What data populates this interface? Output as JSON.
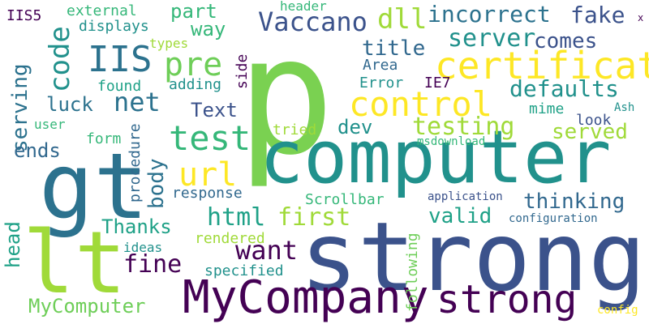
{
  "palette": {
    "dark_purple": "#440154",
    "indigo": "#3b528b",
    "blue": "#31688e",
    "teal": "#21918c",
    "sea_green": "#1fa187",
    "green": "#35b779",
    "light_green": "#6ece58",
    "lime": "#a0da39",
    "yellow": "#fde725"
  },
  "words": [
    {
      "text": "p"
    },
    {
      "text": "computer"
    },
    {
      "text": "strong"
    },
    {
      "text": "gt"
    },
    {
      "text": "lt"
    },
    {
      "text": "MyCompany"
    },
    {
      "text": "strong"
    },
    {
      "text": "certificate"
    },
    {
      "text": "IIS"
    },
    {
      "text": "control"
    },
    {
      "text": "test"
    },
    {
      "text": "code"
    },
    {
      "text": "pre"
    },
    {
      "text": "url"
    },
    {
      "text": "Vaccano"
    },
    {
      "text": "dll"
    },
    {
      "text": "incorrect"
    },
    {
      "text": "fake"
    },
    {
      "text": "server"
    },
    {
      "text": "testing"
    },
    {
      "text": "html"
    },
    {
      "text": "first"
    },
    {
      "text": "title"
    },
    {
      "text": "comes"
    },
    {
      "text": "net"
    },
    {
      "text": "defaults"
    },
    {
      "text": "MyComputer"
    },
    {
      "text": "want"
    },
    {
      "text": "fine"
    },
    {
      "text": "thinking"
    },
    {
      "text": "valid"
    },
    {
      "text": "served"
    },
    {
      "text": "Thanks"
    },
    {
      "text": "body"
    },
    {
      "text": "Text"
    },
    {
      "text": "serving"
    },
    {
      "text": "ends"
    },
    {
      "text": "luck"
    },
    {
      "text": "dev"
    },
    {
      "text": "way"
    },
    {
      "text": "part"
    },
    {
      "text": "head"
    },
    {
      "text": "following"
    },
    {
      "text": "external"
    },
    {
      "text": "displays"
    },
    {
      "text": "IIS5"
    },
    {
      "text": "header"
    },
    {
      "text": "side"
    },
    {
      "text": "types"
    },
    {
      "text": "adding"
    },
    {
      "text": "found"
    },
    {
      "text": "Area"
    },
    {
      "text": "Error"
    },
    {
      "text": "IE7"
    },
    {
      "text": "mime"
    },
    {
      "text": "look"
    },
    {
      "text": "Ash"
    },
    {
      "text": "user"
    },
    {
      "text": "form"
    },
    {
      "text": "procedure"
    },
    {
      "text": "tried"
    },
    {
      "text": "msdownload"
    },
    {
      "text": "response"
    },
    {
      "text": "Scrollbar"
    },
    {
      "text": "application"
    },
    {
      "text": "configuration"
    },
    {
      "text": "rendered"
    },
    {
      "text": "ideas"
    },
    {
      "text": "specified"
    },
    {
      "text": "config"
    },
    {
      "text": "x"
    }
  ]
}
